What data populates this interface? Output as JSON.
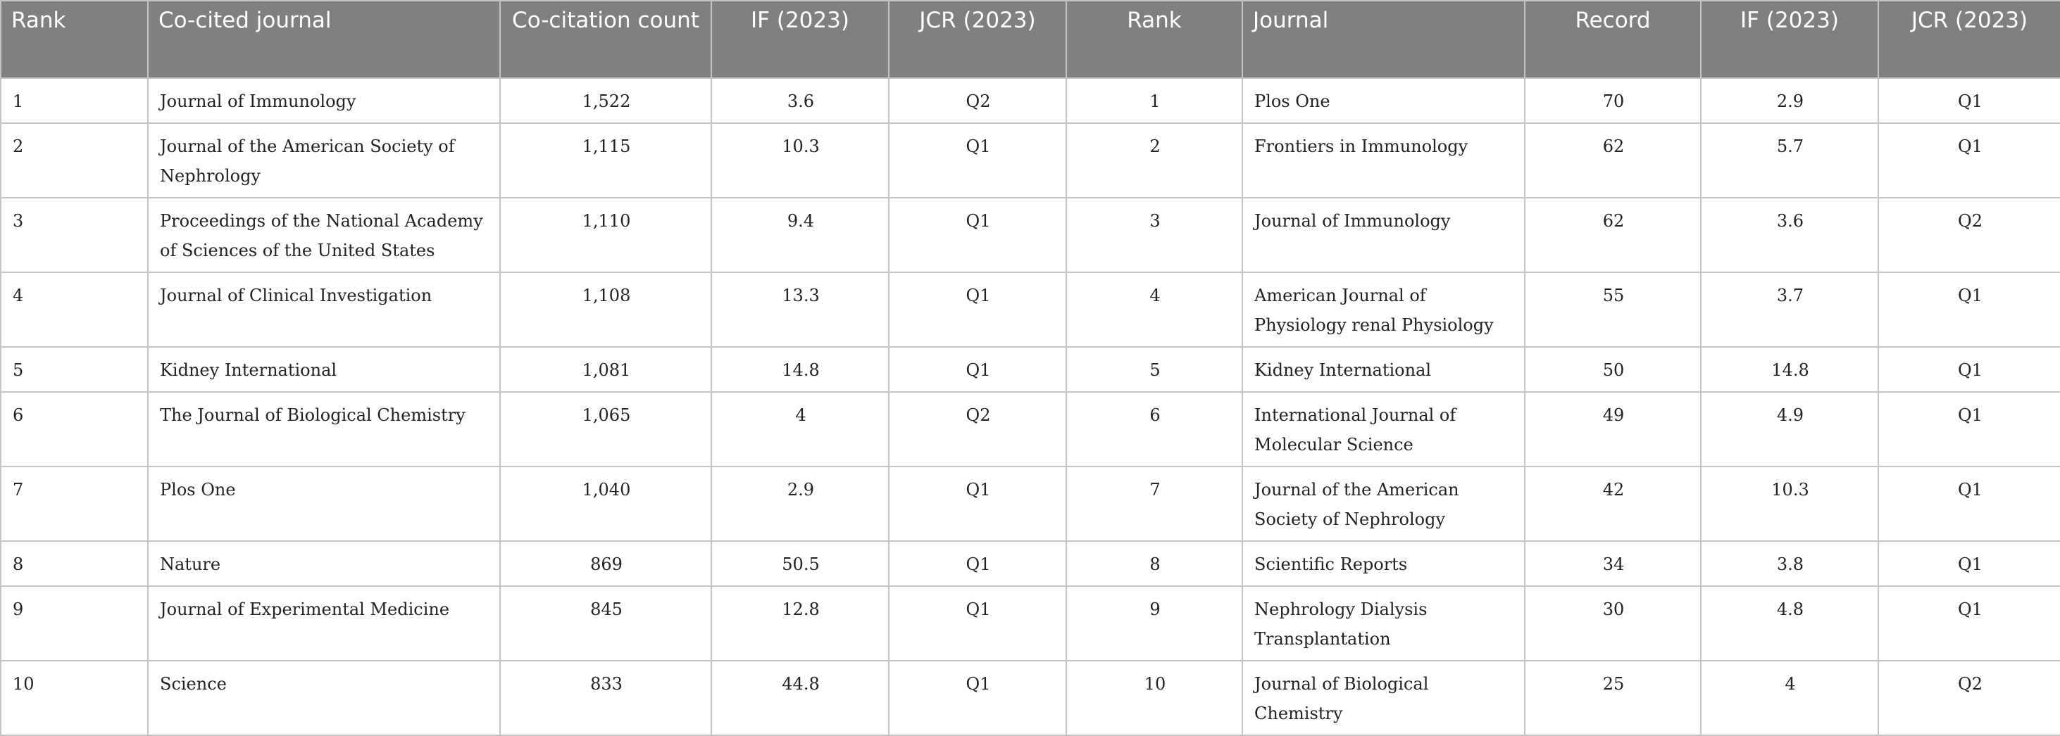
{
  "table": {
    "header": [
      "Rank",
      "Co-cited journal",
      "Co-citation count",
      "IF (2023)",
      "JCR (2023)",
      "Rank",
      "Journal",
      "Record",
      "IF (2023)",
      "JCR (2023)"
    ],
    "rows": [
      [
        "1",
        "Journal of Immunology",
        "1,522",
        "3.6",
        "Q2",
        "1",
        "Plos One",
        "70",
        "2.9",
        "Q1"
      ],
      [
        "2",
        "Journal of the American Society of Nephrology",
        "1,115",
        "10.3",
        "Q1",
        "2",
        "Frontiers in Immunology",
        "62",
        "5.7",
        "Q1"
      ],
      [
        "3",
        "Proceedings of the National Academy of Sciences of the United States",
        "1,110",
        "9.4",
        "Q1",
        "3",
        "Journal of Immunology",
        "62",
        "3.6",
        "Q2"
      ],
      [
        "4",
        "Journal of Clinical Investigation",
        "1,108",
        "13.3",
        "Q1",
        "4",
        "American Journal of Physiology renal Physiology",
        "55",
        "3.7",
        "Q1"
      ],
      [
        "5",
        "Kidney International",
        "1,081",
        "14.8",
        "Q1",
        "5",
        "Kidney International",
        "50",
        "14.8",
        "Q1"
      ],
      [
        "6",
        "The Journal of Biological Chemistry",
        "1,065",
        "4",
        "Q2",
        "6",
        "International Journal of Molecular Science",
        "49",
        "4.9",
        "Q1"
      ],
      [
        "7",
        "Plos One",
        "1,040",
        "2.9",
        "Q1",
        "7",
        "Journal of the American Society of Nephrology",
        "42",
        "10.3",
        "Q1"
      ],
      [
        "8",
        "Nature",
        "869",
        "50.5",
        "Q1",
        "8",
        "Scientific Reports",
        "34",
        "3.8",
        "Q1"
      ],
      [
        "9",
        "Journal of Experimental Medicine",
        "845",
        "12.8",
        "Q1",
        "9",
        "Nephrology Dialysis Transplantation",
        "30",
        "4.8",
        "Q1"
      ],
      [
        "10",
        "Science",
        "833",
        "44.8",
        "Q1",
        "10",
        "Journal of Biological Chemistry",
        "25",
        "4",
        "Q2"
      ]
    ]
  }
}
